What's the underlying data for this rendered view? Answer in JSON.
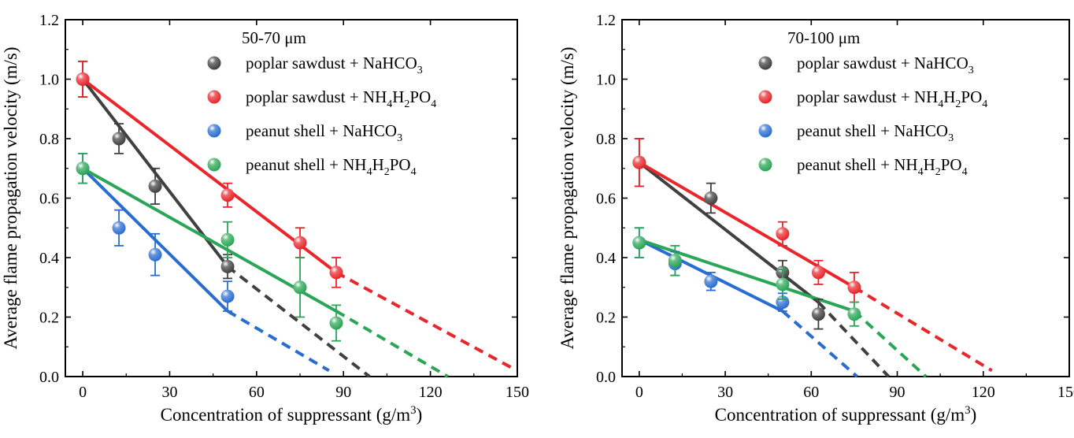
{
  "chart_data": [
    {
      "type": "scatter",
      "title": "50-70 μm",
      "xlabel": "Concentration of suppressant (g/m",
      "xlabel_sup": "3",
      "xlabel_end": ")",
      "ylabel": "Average flame propagation velocity (m/s)",
      "xlim": [
        -6,
        150
      ],
      "ylim": [
        0,
        1.2
      ],
      "xticks": [
        "0",
        "30",
        "60",
        "90",
        "120",
        "150"
      ],
      "yticks": [
        "0.0",
        "0.2",
        "0.4",
        "0.6",
        "0.8",
        "1.0",
        "1.2"
      ],
      "legend_position": "top-right",
      "grid": false,
      "series": [
        {
          "name": "poplar sawdust + NaHCO3",
          "label_parts": [
            [
              "poplar sawdust + NaHCO",
              ""
            ],
            [
              "3",
              "sub"
            ]
          ],
          "color": "#404040",
          "x": [
            0,
            12.5,
            25,
            50
          ],
          "y": [
            1.0,
            0.8,
            0.64,
            0.37
          ],
          "err": [
            0.06,
            0.05,
            0.06,
            0.04
          ],
          "fit_solid": [
            [
              0,
              1.0
            ],
            [
              50,
              0.37
            ]
          ],
          "fit_dashed": [
            [
              50,
              0.37
            ],
            [
              99,
              0.0
            ]
          ]
        },
        {
          "name": "poplar sawdust + NH4H2PO4",
          "label_parts": [
            [
              "poplar sawdust + NH",
              ""
            ],
            [
              "4",
              "sub"
            ],
            [
              "H",
              ""
            ],
            [
              "2",
              "sub"
            ],
            [
              "PO",
              ""
            ],
            [
              "4",
              "sub"
            ]
          ],
          "color": "#e8262b",
          "x": [
            0,
            50,
            75,
            87.5
          ],
          "y": [
            1.0,
            0.61,
            0.45,
            0.35
          ],
          "err": [
            0.06,
            0.04,
            0.05,
            0.05
          ],
          "fit_solid": [
            [
              0,
              1.0
            ],
            [
              87.5,
              0.35
            ]
          ],
          "fit_dashed": [
            [
              87.5,
              0.35
            ],
            [
              148,
              0.03
            ]
          ]
        },
        {
          "name": "peanut shell + NaHCO3",
          "label_parts": [
            [
              "peanut shell + NaHCO",
              ""
            ],
            [
              "3",
              "sub"
            ]
          ],
          "color": "#2a6dd0",
          "x": [
            0,
            12.5,
            25,
            50
          ],
          "y": [
            0.7,
            0.5,
            0.41,
            0.27
          ],
          "err": [
            0.05,
            0.06,
            0.07,
            0.05
          ],
          "fit_solid": [
            [
              0,
              0.7
            ],
            [
              50,
              0.22
            ]
          ],
          "fit_dashed": [
            [
              50,
              0.22
            ],
            [
              85,
              0.02
            ]
          ]
        },
        {
          "name": "peanut shell + NH4H2PO4",
          "label_parts": [
            [
              "peanut shell + NH",
              ""
            ],
            [
              "4",
              "sub"
            ],
            [
              "H",
              ""
            ],
            [
              "2",
              "sub"
            ],
            [
              "PO",
              ""
            ],
            [
              "4",
              "sub"
            ]
          ],
          "color": "#2aa656",
          "x": [
            0,
            50,
            75,
            87.5
          ],
          "y": [
            0.7,
            0.46,
            0.3,
            0.18
          ],
          "err": [
            0.05,
            0.06,
            0.1,
            0.06
          ],
          "fit_solid": [
            [
              0,
              0.7
            ],
            [
              87.5,
              0.22
            ]
          ],
          "fit_dashed": [
            [
              87.5,
              0.22
            ],
            [
              126,
              0.0
            ]
          ]
        }
      ]
    },
    {
      "type": "scatter",
      "title": "70-100 μm",
      "xlabel": "Concentration of suppressant (g/m",
      "xlabel_sup": "3",
      "xlabel_end": ")",
      "ylabel": "Average flame propagation velocity (m/s)",
      "xlim": [
        -6,
        150
      ],
      "ylim": [
        0,
        1.2
      ],
      "xticks": [
        "0",
        "30",
        "60",
        "90",
        "120",
        "150"
      ],
      "yticks": [
        "0.0",
        "0.2",
        "0.4",
        "0.6",
        "0.8",
        "1.0",
        "1.2"
      ],
      "legend_position": "top-right",
      "grid": false,
      "series": [
        {
          "name": "poplar sawdust + NaHCO3",
          "label_parts": [
            [
              "poplar sawdust + NaHCO",
              ""
            ],
            [
              "3",
              "sub"
            ]
          ],
          "color": "#404040",
          "x": [
            0,
            25,
            50,
            62.5
          ],
          "y": [
            0.72,
            0.6,
            0.35,
            0.21
          ],
          "err": [
            0.08,
            0.05,
            0.04,
            0.05
          ],
          "fit_solid": [
            [
              0,
              0.72
            ],
            [
              62.5,
              0.25
            ]
          ],
          "fit_dashed": [
            [
              62.5,
              0.25
            ],
            [
              87,
              0.0
            ]
          ]
        },
        {
          "name": "poplar sawdust + NH4H2PO4",
          "label_parts": [
            [
              "poplar sawdust + NH",
              ""
            ],
            [
              "4",
              "sub"
            ],
            [
              "H",
              ""
            ],
            [
              "2",
              "sub"
            ],
            [
              "PO",
              ""
            ],
            [
              "4",
              "sub"
            ]
          ],
          "color": "#e8262b",
          "x": [
            0,
            50,
            62.5,
            75
          ],
          "y": [
            0.72,
            0.48,
            0.35,
            0.3
          ],
          "err": [
            0.08,
            0.04,
            0.04,
            0.05
          ],
          "fit_solid": [
            [
              0,
              0.72
            ],
            [
              75,
              0.3
            ]
          ],
          "fit_dashed": [
            [
              75,
              0.3
            ],
            [
              123,
              0.02
            ]
          ]
        },
        {
          "name": "peanut shell + NaHCO3",
          "label_parts": [
            [
              "peanut shell + NaHCO",
              ""
            ],
            [
              "3",
              "sub"
            ]
          ],
          "color": "#2a6dd0",
          "x": [
            0,
            12.5,
            25,
            50
          ],
          "y": [
            0.45,
            0.38,
            0.32,
            0.25
          ],
          "err": [
            0.05,
            0.04,
            0.03,
            0.03
          ],
          "fit_solid": [
            [
              0,
              0.46
            ],
            [
              50,
              0.22
            ]
          ],
          "fit_dashed": [
            [
              50,
              0.22
            ],
            [
              76,
              0.0
            ]
          ]
        },
        {
          "name": "peanut shell + NH4H2PO4",
          "label_parts": [
            [
              "peanut shell + NH",
              ""
            ],
            [
              "4",
              "sub"
            ],
            [
              "H",
              ""
            ],
            [
              "2",
              "sub"
            ],
            [
              "PO",
              ""
            ],
            [
              "4",
              "sub"
            ]
          ],
          "color": "#2aa656",
          "x": [
            0,
            12.5,
            50,
            75
          ],
          "y": [
            0.45,
            0.39,
            0.31,
            0.21
          ],
          "err": [
            0.05,
            0.05,
            0.05,
            0.04
          ],
          "fit_solid": [
            [
              0,
              0.46
            ],
            [
              75,
              0.22
            ]
          ],
          "fit_dashed": [
            [
              75,
              0.22
            ],
            [
              100,
              0.0
            ]
          ]
        }
      ]
    }
  ]
}
